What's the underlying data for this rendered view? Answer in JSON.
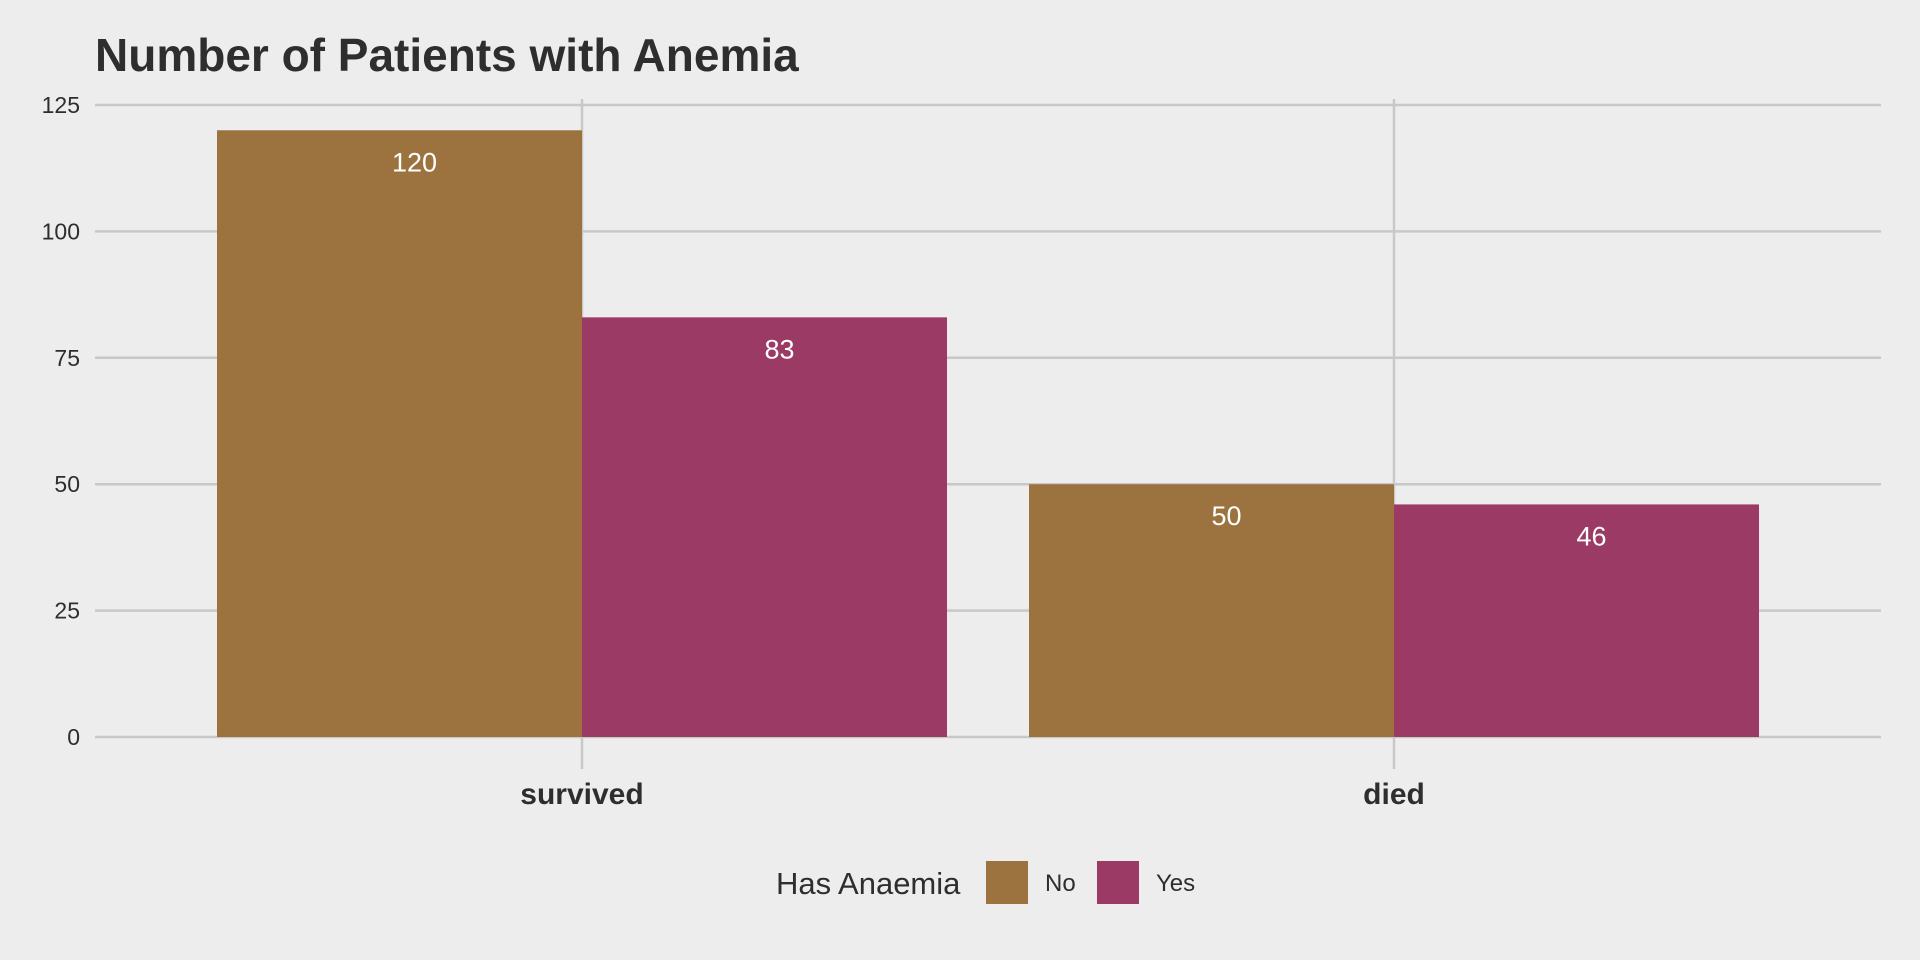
{
  "chart_data": {
    "type": "bar",
    "title": "Number of Patients with Anemia",
    "xlabel": "",
    "ylabel": "",
    "categories": [
      "survived",
      "died"
    ],
    "series": [
      {
        "name": "No",
        "color": "#9c733f",
        "values": [
          120,
          50
        ]
      },
      {
        "name": "Yes",
        "color": "#9b3a64",
        "values": [
          83,
          46
        ]
      }
    ],
    "ylim": [
      0,
      125
    ],
    "yticks": [
      0,
      25,
      50,
      75,
      100,
      125
    ],
    "grid": true,
    "legend": {
      "title": "Has Anaemia",
      "position": "bottom"
    },
    "data_labels": true
  },
  "colors": {
    "background": "#ededed",
    "gridline": "#c8c8c8",
    "text": "#2e2e2e",
    "data_label": "#ffffff"
  }
}
